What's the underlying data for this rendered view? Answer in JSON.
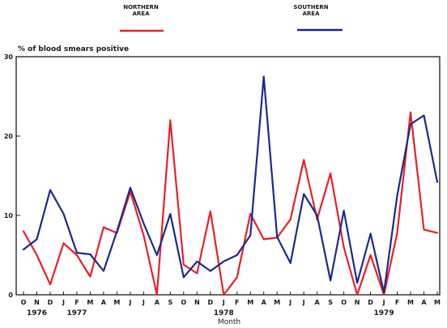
{
  "chart_data": {
    "type": "line",
    "ylabel": "% of blood smears positive",
    "xlabel": "Month",
    "ylim": [
      0,
      30
    ],
    "yticks": [
      0,
      10,
      20,
      30
    ],
    "grid": false,
    "legend_position": "top",
    "categories": [
      "O",
      "N",
      "D",
      "J",
      "F",
      "M",
      "A",
      "M",
      "J",
      "J",
      "A",
      "S",
      "O",
      "N",
      "D",
      "J",
      "F",
      "M",
      "A",
      "M",
      "J",
      "J",
      "A",
      "S",
      "O",
      "N",
      "D",
      "J",
      "F",
      "M",
      "A",
      "M"
    ],
    "years": [
      {
        "label": "1976",
        "index": 1
      },
      {
        "label": "1977",
        "index": 4
      },
      {
        "label": "1978",
        "index": 15
      },
      {
        "label": "1979",
        "index": 27
      }
    ],
    "series": [
      {
        "name": "NORTHERN AREA",
        "legend_lines": [
          "NORTHERN",
          "AREA"
        ],
        "color": "#e8202a",
        "values": [
          8.0,
          5.0,
          1.3,
          6.5,
          5.0,
          2.3,
          8.5,
          7.8,
          13.0,
          7.5,
          0.0,
          22.0,
          3.8,
          2.7,
          10.5,
          0.0,
          2.2,
          10.2,
          7.0,
          7.2,
          9.5,
          17.0,
          9.5,
          15.3,
          6.0,
          0.0,
          5.0,
          0.0,
          7.8,
          23.0,
          8.2,
          7.8
        ]
      },
      {
        "name": "SOUTHERN AREA",
        "legend_lines": [
          "SOUTHERN",
          "AREA"
        ],
        "color": "#1c2a8c",
        "values": [
          5.7,
          7.0,
          13.2,
          10.2,
          5.3,
          5.1,
          3.0,
          8.0,
          13.5,
          9.0,
          5.0,
          10.2,
          2.2,
          4.2,
          3.0,
          4.2,
          5.0,
          7.5,
          27.5,
          7.3,
          4.0,
          12.7,
          10.0,
          1.8,
          10.6,
          1.5,
          7.7,
          0.3,
          12.5,
          21.5,
          22.6,
          14.2
        ]
      }
    ]
  }
}
